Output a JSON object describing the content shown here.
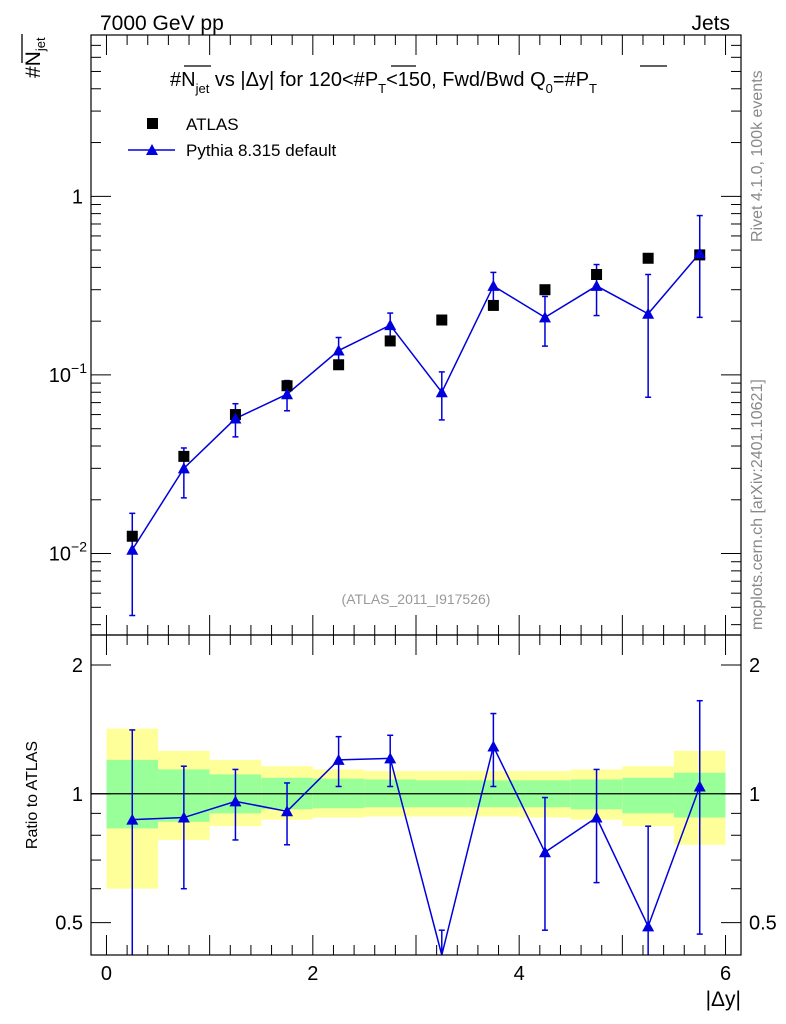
{
  "header": {
    "left": "7000 GeV pp",
    "right": "Jets"
  },
  "side_labels": {
    "rivet": "Rivet 4.1.0,  100k events",
    "mcplots": "mcplots.cern.ch [arXiv:2401.10621]"
  },
  "watermark": "(ATLAS_2011_I917526)",
  "colors": {
    "data": "#000000",
    "mc": "#0000dd",
    "band_inner": "#99ff99",
    "band_outer": "#ffff99",
    "frame": "#000000"
  },
  "chart_data": [
    {
      "type": "scatter",
      "id": "main",
      "title": "#N_jet vs |Δy| for 120<#P_T<150, Fwd/Bwd Q0=#P_T",
      "title_parts": {
        "a": "#",
        "b": "N",
        "c": "jet",
        "d": " vs |Δy|  for 120<#",
        "e": "P",
        "f": "T",
        "g": "<150, Fwd/Bwd Q",
        "h": "0",
        "i": "=#",
        "j": "P",
        "k": "T"
      },
      "ylabel_parts": {
        "a": "#",
        "b": "N",
        "c": "jet"
      },
      "yscale": "log",
      "ylim": [
        0.0035,
        8.0
      ],
      "xlim": [
        -0.15,
        6.15
      ],
      "yticks": [
        {
          "v": 0.01,
          "base": "10",
          "exp": "−2"
        },
        {
          "v": 0.1,
          "base": "10",
          "exp": "−1"
        },
        {
          "v": 1,
          "base": "1",
          "exp": ""
        }
      ],
      "legend": {
        "position": "top-left",
        "entries": [
          "ATLAS",
          "Pythia 8.315 default"
        ]
      },
      "series": [
        {
          "name": "ATLAS",
          "marker": "square",
          "x": [
            0.25,
            0.75,
            1.25,
            1.75,
            2.25,
            2.75,
            3.25,
            3.75,
            4.25,
            4.75,
            5.25,
            5.75
          ],
          "y": [
            0.0125,
            0.035,
            0.06,
            0.087,
            0.114,
            0.155,
            0.203,
            0.245,
            0.3,
            0.365,
            0.45,
            0.47
          ]
        },
        {
          "name": "Pythia 8.315 default",
          "marker": "triangle",
          "x": [
            0.25,
            0.75,
            1.25,
            1.75,
            2.25,
            2.75,
            3.25,
            3.75,
            4.25,
            4.75,
            5.25,
            5.75
          ],
          "y": [
            0.0105,
            0.03,
            0.057,
            0.078,
            0.137,
            0.19,
            0.08,
            0.315,
            0.21,
            0.315,
            0.22,
            0.48
          ],
          "ylo": [
            0.0045,
            0.0205,
            0.045,
            0.063,
            0.112,
            0.157,
            0.056,
            0.255,
            0.145,
            0.215,
            0.075,
            0.21
          ],
          "yhi": [
            0.0168,
            0.039,
            0.069,
            0.093,
            0.162,
            0.222,
            0.104,
            0.375,
            0.275,
            0.415,
            0.365,
            0.78
          ]
        }
      ]
    },
    {
      "type": "line",
      "id": "ratio",
      "ylabel": "Ratio to ATLAS",
      "xlabel": "|Δy|",
      "yscale": "log",
      "ylim": [
        0.42,
        2.35
      ],
      "xlim": [
        -0.15,
        6.15
      ],
      "yticks": [
        {
          "v": 0.5,
          "label": "0.5"
        },
        {
          "v": 1,
          "label": "1"
        },
        {
          "v": 2,
          "label": "2"
        }
      ],
      "xticks": [
        {
          "v": 0,
          "label": "0"
        },
        {
          "v": 2,
          "label": "2"
        },
        {
          "v": 4,
          "label": "4"
        },
        {
          "v": 6,
          "label": "6"
        }
      ],
      "bands": {
        "edges": [
          0,
          0.5,
          1.0,
          1.5,
          2.0,
          2.5,
          3.0,
          3.5,
          4.0,
          4.5,
          5.0,
          5.5,
          6.0
        ],
        "inner_lo": [
          0.83,
          0.86,
          0.9,
          0.92,
          0.925,
          0.93,
          0.93,
          0.93,
          0.93,
          0.92,
          0.9,
          0.88
        ],
        "inner_hi": [
          1.2,
          1.14,
          1.11,
          1.09,
          1.085,
          1.08,
          1.075,
          1.075,
          1.075,
          1.08,
          1.09,
          1.12
        ],
        "outer_lo": [
          0.6,
          0.78,
          0.84,
          0.87,
          0.88,
          0.885,
          0.885,
          0.885,
          0.88,
          0.87,
          0.84,
          0.76
        ],
        "outer_hi": [
          1.42,
          1.26,
          1.2,
          1.16,
          1.14,
          1.13,
          1.13,
          1.13,
          1.13,
          1.14,
          1.16,
          1.26
        ]
      },
      "series": [
        {
          "name": "Pythia 8.315 default",
          "x": [
            0.25,
            0.75,
            1.25,
            1.75,
            2.25,
            2.75,
            3.25,
            3.75,
            4.25,
            4.75,
            5.25,
            5.75
          ],
          "y": [
            0.87,
            0.88,
            0.96,
            0.91,
            1.2,
            1.21,
            0.39,
            1.29,
            0.73,
            0.88,
            0.49,
            1.04
          ],
          "ylo": [
            0.33,
            0.6,
            0.78,
            0.76,
            1.04,
            1.04,
            0.3,
            1.04,
            0.48,
            0.62,
            0.2,
            0.47
          ],
          "yhi": [
            1.41,
            1.16,
            1.14,
            1.06,
            1.36,
            1.37,
            0.48,
            1.54,
            0.98,
            1.14,
            0.84,
            1.65
          ]
        }
      ]
    }
  ]
}
